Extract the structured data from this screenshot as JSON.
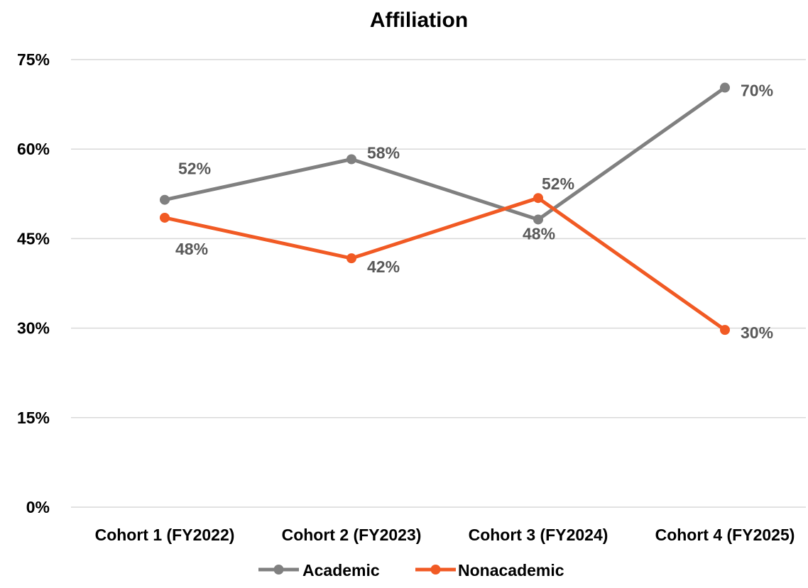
{
  "chart_data": {
    "type": "line",
    "title": "Affiliation",
    "categories": [
      "Cohort 1 (FY2022)",
      "Cohort 2 (FY2023)",
      "Cohort 3 (FY2024)",
      "Cohort 4 (FY2025)"
    ],
    "ylim": [
      0,
      75
    ],
    "yticks": [
      0,
      15,
      30,
      45,
      60,
      75
    ],
    "ytick_labels": [
      "0%",
      "15%",
      "30%",
      "45%",
      "60%",
      "75%"
    ],
    "grid": true,
    "legend_position": "bottom",
    "series": [
      {
        "name": "Academic",
        "color": "#808080",
        "values": [
          51.5,
          58.3,
          48.2,
          70.3
        ],
        "labels": [
          "52%",
          "58%",
          "48%",
          "70%"
        ]
      },
      {
        "name": "Nonacademic",
        "color": "#f15a24",
        "values": [
          48.5,
          41.7,
          51.8,
          29.7
        ],
        "labels": [
          "48%",
          "42%",
          "52%",
          "30%"
        ]
      }
    ]
  }
}
